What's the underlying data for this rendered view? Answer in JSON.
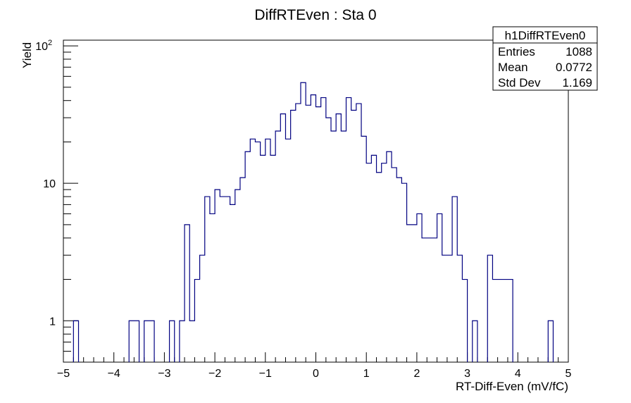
{
  "chart_data": {
    "type": "histogram",
    "title": "DiffRTEven : Sta 0",
    "xlabel": "RT-Diff-Even (mV/fC)",
    "ylabel": "Yield",
    "xlim": [
      -5,
      5
    ],
    "ylim": [
      0.5,
      110
    ],
    "yscale": "log",
    "grid": false,
    "line_color": "#000080",
    "bin_width": 0.1,
    "x_ticks": [
      "−5",
      "−4",
      "−3",
      "−2",
      "−1",
      "0",
      "1",
      "2",
      "3",
      "4",
      "5"
    ],
    "y_ticks": [
      {
        "value": 1,
        "label": "1"
      },
      {
        "value": 10,
        "label": "10"
      },
      {
        "value": 100,
        "base": "10",
        "exp": "2"
      }
    ],
    "bins": [
      {
        "x": -4.8,
        "y": 1
      },
      {
        "x": -3.7,
        "y": 1
      },
      {
        "x": -3.6,
        "y": 1
      },
      {
        "x": -3.4,
        "y": 1
      },
      {
        "x": -3.3,
        "y": 1
      },
      {
        "x": -2.9,
        "y": 1
      },
      {
        "x": -2.7,
        "y": 1
      },
      {
        "x": -2.6,
        "y": 5
      },
      {
        "x": -2.5,
        "y": 1
      },
      {
        "x": -2.4,
        "y": 2
      },
      {
        "x": -2.3,
        "y": 3
      },
      {
        "x": -2.2,
        "y": 8
      },
      {
        "x": -2.1,
        "y": 6
      },
      {
        "x": -2.0,
        "y": 9
      },
      {
        "x": -1.9,
        "y": 8
      },
      {
        "x": -1.8,
        "y": 8
      },
      {
        "x": -1.7,
        "y": 7
      },
      {
        "x": -1.6,
        "y": 9
      },
      {
        "x": -1.5,
        "y": 11
      },
      {
        "x": -1.4,
        "y": 17
      },
      {
        "x": -1.3,
        "y": 21
      },
      {
        "x": -1.2,
        "y": 20
      },
      {
        "x": -1.1,
        "y": 16
      },
      {
        "x": -1.0,
        "y": 21
      },
      {
        "x": -0.9,
        "y": 16
      },
      {
        "x": -0.8,
        "y": 24
      },
      {
        "x": -0.7,
        "y": 32
      },
      {
        "x": -0.6,
        "y": 21
      },
      {
        "x": -0.5,
        "y": 34
      },
      {
        "x": -0.4,
        "y": 38
      },
      {
        "x": -0.3,
        "y": 54
      },
      {
        "x": -0.2,
        "y": 37
      },
      {
        "x": -0.1,
        "y": 44
      },
      {
        "x": 0.0,
        "y": 36
      },
      {
        "x": 0.1,
        "y": 42
      },
      {
        "x": 0.2,
        "y": 30
      },
      {
        "x": 0.3,
        "y": 24
      },
      {
        "x": 0.4,
        "y": 32
      },
      {
        "x": 0.5,
        "y": 24
      },
      {
        "x": 0.6,
        "y": 42
      },
      {
        "x": 0.7,
        "y": 34
      },
      {
        "x": 0.8,
        "y": 38
      },
      {
        "x": 0.9,
        "y": 22
      },
      {
        "x": 1.0,
        "y": 14
      },
      {
        "x": 1.1,
        "y": 16
      },
      {
        "x": 1.2,
        "y": 12
      },
      {
        "x": 1.3,
        "y": 14
      },
      {
        "x": 1.4,
        "y": 17
      },
      {
        "x": 1.5,
        "y": 13
      },
      {
        "x": 1.6,
        "y": 11
      },
      {
        "x": 1.7,
        "y": 10
      },
      {
        "x": 1.8,
        "y": 5
      },
      {
        "x": 1.9,
        "y": 5
      },
      {
        "x": 2.0,
        "y": 6
      },
      {
        "x": 2.1,
        "y": 4
      },
      {
        "x": 2.2,
        "y": 4
      },
      {
        "x": 2.3,
        "y": 4
      },
      {
        "x": 2.4,
        "y": 6
      },
      {
        "x": 2.5,
        "y": 3
      },
      {
        "x": 2.6,
        "y": 3
      },
      {
        "x": 2.7,
        "y": 8
      },
      {
        "x": 2.8,
        "y": 3
      },
      {
        "x": 2.9,
        "y": 2
      },
      {
        "x": 3.1,
        "y": 1
      },
      {
        "x": 3.4,
        "y": 3
      },
      {
        "x": 3.5,
        "y": 2
      },
      {
        "x": 3.6,
        "y": 2
      },
      {
        "x": 3.7,
        "y": 2
      },
      {
        "x": 3.8,
        "y": 2
      },
      {
        "x": 4.6,
        "y": 1
      }
    ],
    "stats": {
      "name": "h1DiffRTEven0",
      "rows": [
        {
          "label": "Entries",
          "value": "1088"
        },
        {
          "label": "Mean",
          "value": "0.0772"
        },
        {
          "label": "Std Dev",
          "value": "1.169"
        }
      ]
    }
  }
}
